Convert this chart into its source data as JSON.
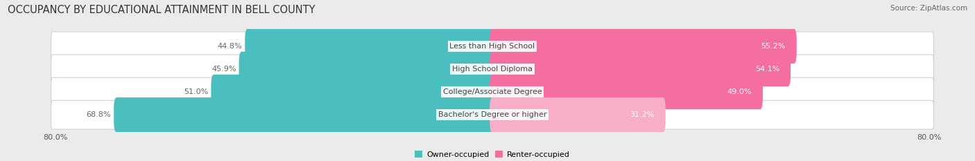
{
  "title": "OCCUPANCY BY EDUCATIONAL ATTAINMENT IN BELL COUNTY",
  "source": "Source: ZipAtlas.com",
  "categories": [
    "Less than High School",
    "High School Diploma",
    "College/Associate Degree",
    "Bachelor's Degree or higher"
  ],
  "owner_values": [
    44.8,
    45.9,
    51.0,
    68.8
  ],
  "renter_values": [
    55.2,
    54.1,
    49.0,
    31.2
  ],
  "owner_color": "#4bbfbf",
  "renter_colors": [
    "#f46fa0",
    "#f46fa0",
    "#f46fa0",
    "#f9aec8"
  ],
  "background_color": "#ebebeb",
  "bar_bg_color": "#ffffff",
  "bar_border_color": "#d0d0d0",
  "xlim": 80.0,
  "tick_label_fontsize": 8,
  "legend_owner": "Owner-occupied",
  "legend_renter": "Renter-occupied",
  "title_fontsize": 10.5,
  "source_fontsize": 7.5,
  "value_label_fontsize": 8,
  "category_fontsize": 8,
  "owner_label_color": "#666666",
  "renter_label_color_inside": "#ffffff",
  "renter_label_color_outside": "#666666"
}
